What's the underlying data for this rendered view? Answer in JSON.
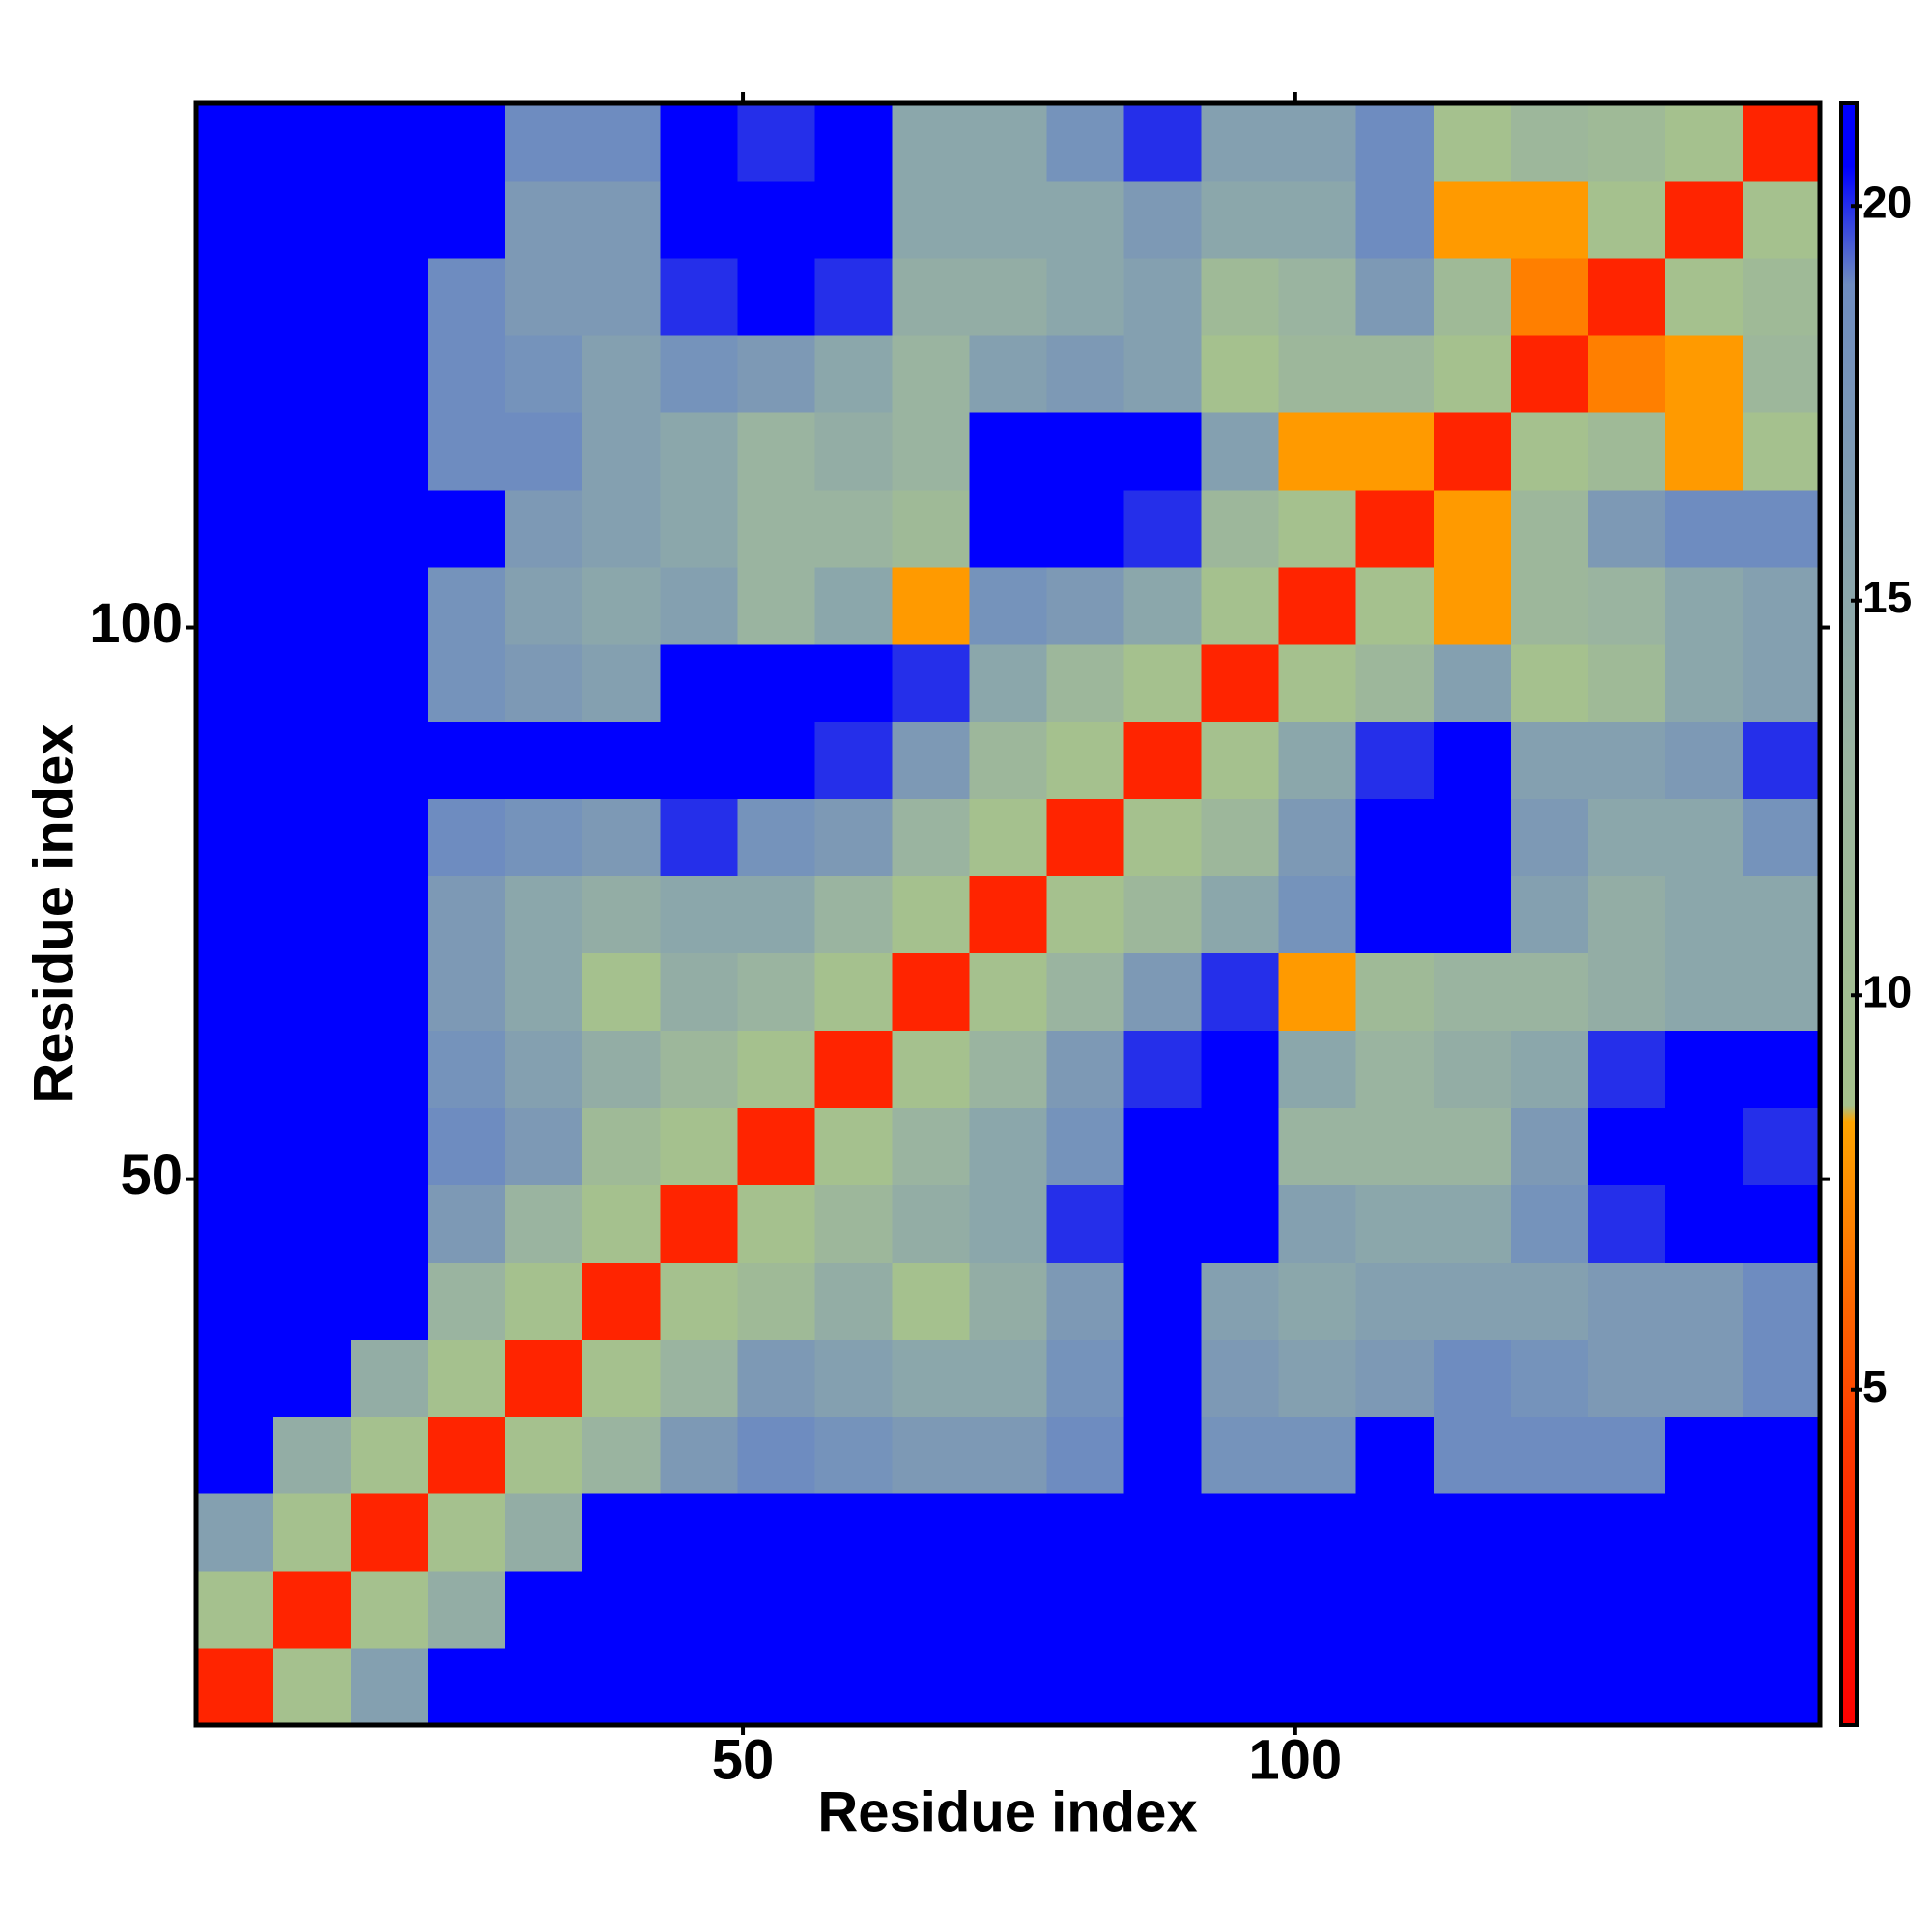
{
  "chart_data": {
    "type": "heatmap",
    "x_label": "Residue index",
    "y_label": "Residue index",
    "xlim": [
      0.5,
      147.5
    ],
    "ylim": [
      0.5,
      147.5
    ],
    "xticks": [
      50,
      100
    ],
    "yticks": [
      50,
      100
    ],
    "x": [
      4,
      11,
      18,
      25,
      32,
      39,
      46,
      53,
      60,
      67,
      74,
      81,
      88,
      95,
      102,
      109,
      116,
      123,
      130,
      137,
      144
    ],
    "y": [
      4,
      11,
      18,
      25,
      32,
      39,
      46,
      53,
      60,
      67,
      74,
      81,
      88,
      95,
      102,
      109,
      116,
      123,
      130,
      137,
      144
    ],
    "z": [
      [
        3,
        9,
        16,
        21,
        21,
        21,
        21,
        21,
        21,
        21,
        21,
        21,
        21,
        21,
        21,
        21,
        21,
        21,
        21,
        21,
        21
      ],
      [
        9,
        3,
        9,
        14,
        21,
        21,
        21,
        21,
        21,
        21,
        21,
        21,
        21,
        21,
        21,
        21,
        21,
        21,
        21,
        21,
        21
      ],
      [
        16,
        9,
        3,
        9,
        14,
        21,
        21,
        21,
        21,
        21,
        21,
        21,
        21,
        21,
        21,
        21,
        21,
        21,
        21,
        21,
        21
      ],
      [
        21,
        14,
        9,
        3,
        9,
        13,
        17,
        19,
        18,
        17,
        17,
        19,
        21,
        18,
        18,
        21,
        19,
        19,
        19,
        21,
        21
      ],
      [
        21,
        21,
        14,
        9,
        3,
        9,
        13,
        17,
        16,
        15,
        15,
        18,
        21,
        17,
        16,
        17,
        19,
        18,
        17,
        17,
        19
      ],
      [
        21,
        21,
        21,
        13,
        9,
        3,
        9,
        11,
        14,
        9,
        14,
        17,
        21,
        16,
        15,
        16,
        16,
        16,
        17,
        17,
        19
      ],
      [
        21,
        21,
        21,
        17,
        13,
        9,
        3,
        9,
        12,
        14,
        15,
        20,
        21,
        21,
        16,
        15,
        15,
        18,
        20,
        21,
        21
      ],
      [
        21,
        21,
        21,
        19,
        17,
        11,
        9,
        3,
        9,
        13,
        15,
        18,
        21,
        21,
        13,
        13,
        13,
        17,
        21,
        21,
        20
      ],
      [
        21,
        21,
        21,
        18,
        16,
        14,
        12,
        9,
        3,
        9,
        13,
        17,
        20,
        21,
        15,
        13,
        14,
        15,
        20,
        21,
        21
      ],
      [
        21,
        21,
        21,
        17,
        15,
        9,
        14,
        13,
        9,
        3,
        9,
        13,
        17,
        20,
        8,
        11,
        13,
        13,
        14,
        15,
        15
      ],
      [
        21,
        21,
        21,
        17,
        15,
        14,
        15,
        15,
        13,
        9,
        3,
        9,
        12,
        15,
        18,
        21,
        21,
        16,
        14,
        15,
        15
      ],
      [
        21,
        21,
        21,
        19,
        18,
        17,
        20,
        18,
        17,
        13,
        9,
        3,
        9,
        12,
        17,
        21,
        21,
        17,
        15,
        15,
        18
      ],
      [
        21,
        21,
        21,
        21,
        21,
        21,
        21,
        21,
        20,
        17,
        12,
        9,
        3,
        9,
        15,
        20,
        21,
        16,
        16,
        17,
        20
      ],
      [
        21,
        21,
        21,
        18,
        17,
        16,
        21,
        21,
        21,
        20,
        15,
        12,
        9,
        3,
        9,
        12,
        16,
        9,
        11,
        15,
        16
      ],
      [
        21,
        21,
        21,
        18,
        16,
        15,
        16,
        13,
        15,
        8,
        18,
        17,
        15,
        9,
        3,
        9,
        8,
        12,
        13,
        15,
        16
      ],
      [
        21,
        21,
        21,
        21,
        17,
        16,
        15,
        13,
        13,
        11,
        21,
        21,
        20,
        12,
        9,
        3,
        8,
        12,
        17,
        19,
        19
      ],
      [
        21,
        21,
        21,
        19,
        19,
        16,
        15,
        13,
        14,
        13,
        21,
        21,
        21,
        16,
        8,
        8,
        3,
        9,
        11,
        8,
        9
      ],
      [
        21,
        21,
        21,
        19,
        18,
        16,
        18,
        17,
        15,
        13,
        16,
        17,
        16,
        9,
        12,
        12,
        9,
        3,
        7,
        8,
        12
      ],
      [
        21,
        21,
        21,
        19,
        17,
        17,
        20,
        21,
        20,
        14,
        14,
        15,
        16,
        11,
        13,
        17,
        11,
        7,
        3,
        9,
        11
      ],
      [
        21,
        21,
        21,
        21,
        17,
        17,
        21,
        21,
        21,
        15,
        15,
        15,
        17,
        15,
        15,
        19,
        8,
        8,
        9,
        3,
        9
      ],
      [
        21,
        21,
        21,
        21,
        19,
        19,
        21,
        20,
        21,
        15,
        15,
        18,
        20,
        16,
        16,
        19,
        9,
        12,
        11,
        9,
        3
      ]
    ],
    "colorscale": [
      {
        "value": 0.75,
        "color": "#ff0000"
      },
      {
        "value": 4.5,
        "color": "#ff3c00"
      },
      {
        "value": 8.4,
        "color": "#ffa500"
      },
      {
        "value": 8.6,
        "color": "#a6c28c"
      },
      {
        "value": 13,
        "color": "#9ab4a0"
      },
      {
        "value": 19,
        "color": "#6e8cc0"
      },
      {
        "value": 20.5,
        "color": "#0000ff"
      },
      {
        "value": 21.3,
        "color": "#0000ff"
      }
    ],
    "colorbar": {
      "lim": [
        0.75,
        21.3
      ],
      "ticks": [
        5,
        10,
        15,
        20
      ]
    }
  }
}
